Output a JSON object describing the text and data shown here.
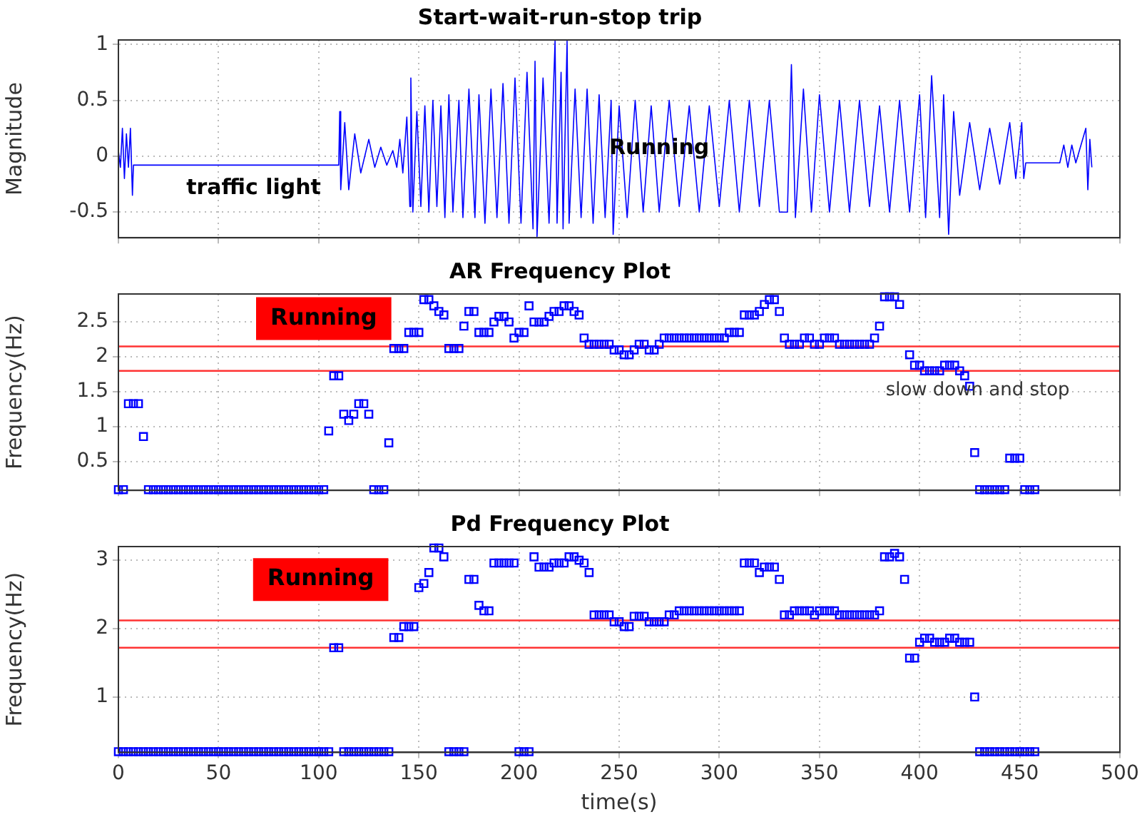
{
  "chart_data": [
    {
      "type": "line",
      "title": "Start-wait-run-stop trip",
      "ylabel": "Magnitude",
      "color": "#0000ff",
      "marker": "none",
      "line_style": "solid",
      "grid": true,
      "tick_labels": "y",
      "xlim": [
        0,
        500
      ],
      "xticks": [
        0,
        50,
        100,
        150,
        200,
        250,
        300,
        350,
        400,
        450,
        500
      ],
      "ylim": [
        -0.73,
        1.04
      ],
      "yticks": [
        -0.5,
        0,
        0.5,
        1
      ],
      "annotations": [
        "traffic light",
        "Running"
      ],
      "x": [
        0,
        1,
        2,
        3,
        4,
        5,
        6,
        7,
        7.5,
        110,
        110.5,
        111,
        113,
        115,
        118,
        121,
        125,
        128,
        131,
        134,
        137,
        139,
        140.5,
        142,
        144,
        145.5,
        146,
        147,
        149,
        151,
        153,
        155,
        157,
        159,
        161,
        163,
        165,
        167,
        170,
        172,
        175,
        178,
        180,
        183,
        186,
        189,
        192,
        195,
        198,
        201,
        204,
        207,
        208,
        209,
        212,
        215,
        218,
        219,
        221,
        222,
        224,
        225,
        228,
        231,
        234,
        237,
        240,
        243,
        246,
        247,
        250,
        254,
        258,
        262,
        266,
        270,
        275,
        280,
        285,
        290,
        295,
        300,
        305,
        310,
        315,
        320,
        325,
        330,
        334,
        336,
        338,
        342,
        346,
        350,
        355,
        360,
        365,
        370,
        375,
        380,
        385,
        390,
        395,
        400,
        403,
        406,
        410,
        412,
        414.5,
        417,
        420,
        425,
        430,
        435,
        440,
        445,
        448,
        451,
        452,
        453,
        470,
        472,
        474,
        476,
        478,
        483,
        484,
        485,
        486
      ],
      "values": [
        0.05,
        -0.1,
        0.25,
        -0.2,
        0.2,
        -0.1,
        0.25,
        -0.35,
        -0.08,
        -0.08,
        0.4,
        -0.3,
        0.3,
        -0.3,
        0.2,
        -0.15,
        0.15,
        -0.1,
        0.08,
        -0.08,
        0.05,
        -0.1,
        0.15,
        -0.15,
        0.35,
        -0.45,
        0.7,
        -0.5,
        0.4,
        -0.45,
        0.45,
        -0.5,
        0.5,
        -0.45,
        0.45,
        -0.55,
        0.55,
        -0.5,
        0.5,
        -0.55,
        0.6,
        -0.55,
        0.55,
        -0.6,
        0.6,
        -0.55,
        0.65,
        -0.6,
        0.7,
        -0.6,
        0.75,
        -0.65,
        0.85,
        -0.72,
        0.7,
        -0.6,
        1.03,
        -0.6,
        0.75,
        -0.65,
        1.03,
        -0.6,
        0.6,
        -0.55,
        0.6,
        -0.6,
        0.55,
        -0.55,
        0.5,
        -0.7,
        0.45,
        -0.55,
        0.5,
        -0.5,
        0.45,
        -0.5,
        0.5,
        -0.45,
        0.45,
        -0.5,
        0.45,
        -0.45,
        0.5,
        -0.5,
        0.5,
        -0.45,
        0.5,
        -0.5,
        -0.5,
        0.82,
        -0.55,
        0.6,
        -0.5,
        0.55,
        -0.5,
        0.5,
        -0.5,
        0.5,
        -0.45,
        0.45,
        -0.5,
        0.5,
        -0.5,
        0.55,
        -0.55,
        0.72,
        -0.55,
        0.55,
        -0.7,
        0.4,
        -0.35,
        0.3,
        -0.3,
        0.25,
        -0.25,
        0.3,
        -0.2,
        0.3,
        -0.2,
        -0.06,
        -0.06,
        0.1,
        -0.1,
        0.1,
        -0.06,
        0.25,
        -0.3,
        0.15,
        -0.1
      ]
    },
    {
      "type": "scatter",
      "title": "AR Frequency Plot",
      "ylabel": "Frequency(Hz)",
      "color": "#0000ff",
      "marker": "square",
      "grid": true,
      "tick_labels": "y",
      "xlim": [
        0,
        500
      ],
      "xticks": [
        0,
        50,
        100,
        150,
        200,
        250,
        300,
        350,
        400,
        450,
        500
      ],
      "ylim": [
        0.09,
        2.9
      ],
      "yticks": [
        0.5,
        1,
        1.5,
        2,
        2.5
      ],
      "ref_lines": [
        {
          "axis": "y",
          "value": 2.15,
          "color": "#ff3333"
        },
        {
          "axis": "y",
          "value": 1.8,
          "color": "#ff3333"
        }
      ],
      "annotations": [
        "Running",
        "slow down and stop"
      ],
      "x": [
        0,
        2.5,
        5,
        7.5,
        10,
        12.5,
        15,
        17.5,
        20,
        22.5,
        25,
        27.5,
        30,
        32.5,
        35,
        37.5,
        40,
        42.5,
        45,
        47.5,
        50,
        52.5,
        55,
        57.5,
        60,
        62.5,
        65,
        67.5,
        70,
        72.5,
        75,
        77.5,
        80,
        82.5,
        85,
        87.5,
        90,
        92.5,
        95,
        97.5,
        100,
        102.5,
        105,
        107.5,
        110,
        112.5,
        115,
        117.5,
        120,
        122.5,
        125,
        127.5,
        130,
        132.5,
        135,
        137.5,
        140,
        142.5,
        145,
        147.5,
        150,
        152.5,
        155,
        157.5,
        160,
        162.5,
        165,
        167.5,
        170,
        172.5,
        175,
        177.5,
        180,
        182.5,
        185,
        187.5,
        190,
        192.5,
        195,
        197.5,
        200,
        202.5,
        205,
        207.5,
        210,
        212.5,
        215,
        217.5,
        220,
        222.5,
        225,
        227.5,
        230,
        232.5,
        235,
        237.5,
        240,
        242.5,
        245,
        247.5,
        250,
        252.5,
        255,
        257.5,
        260,
        262.5,
        265,
        267.5,
        270,
        272.5,
        275,
        277.5,
        280,
        282.5,
        285,
        287.5,
        290,
        292.5,
        295,
        297.5,
        300,
        302.5,
        305,
        307.5,
        310,
        312.5,
        315,
        317.5,
        320,
        322.5,
        325,
        327.5,
        330,
        332.5,
        335,
        337.5,
        340,
        342.5,
        345,
        347.5,
        350,
        352.5,
        355,
        357.5,
        360,
        362.5,
        365,
        367.5,
        370,
        372.5,
        375,
        377.5,
        380,
        382.5,
        385,
        387.5,
        390,
        395,
        397.5,
        400,
        402.5,
        405,
        407.5,
        410,
        412.5,
        415,
        417.5,
        420,
        422.5,
        425,
        427.5,
        430,
        432.5,
        435,
        437.5,
        440,
        442.5,
        445,
        447.5,
        450,
        452.5,
        455,
        457.5
      ],
      "values": [
        0.1,
        0.1,
        1.33,
        1.33,
        1.33,
        0.86,
        0.1,
        0.1,
        0.1,
        0.1,
        0.1,
        0.1,
        0.1,
        0.1,
        0.1,
        0.1,
        0.1,
        0.1,
        0.1,
        0.1,
        0.1,
        0.1,
        0.1,
        0.1,
        0.1,
        0.1,
        0.1,
        0.1,
        0.1,
        0.1,
        0.1,
        0.1,
        0.1,
        0.1,
        0.1,
        0.1,
        0.1,
        0.1,
        0.1,
        0.1,
        0.1,
        0.1,
        0.94,
        1.73,
        1.73,
        1.18,
        1.09,
        1.18,
        1.33,
        1.33,
        1.18,
        0.1,
        0.1,
        0.1,
        0.77,
        2.12,
        2.12,
        2.12,
        2.35,
        2.35,
        2.35,
        2.82,
        2.82,
        2.73,
        2.65,
        2.6,
        2.12,
        2.12,
        2.12,
        2.44,
        2.65,
        2.65,
        2.35,
        2.35,
        2.35,
        2.5,
        2.58,
        2.58,
        2.5,
        2.27,
        2.35,
        2.35,
        2.73,
        2.5,
        2.5,
        2.5,
        2.58,
        2.65,
        2.65,
        2.73,
        2.73,
        2.65,
        2.6,
        2.27,
        2.18,
        2.18,
        2.18,
        2.18,
        2.18,
        2.1,
        2.1,
        2.03,
        2.03,
        2.1,
        2.18,
        2.18,
        2.1,
        2.1,
        2.18,
        2.27,
        2.27,
        2.27,
        2.27,
        2.27,
        2.27,
        2.27,
        2.27,
        2.27,
        2.27,
        2.27,
        2.27,
        2.27,
        2.35,
        2.35,
        2.35,
        2.6,
        2.6,
        2.6,
        2.65,
        2.75,
        2.82,
        2.82,
        2.65,
        2.27,
        2.18,
        2.18,
        2.18,
        2.27,
        2.27,
        2.18,
        2.18,
        2.27,
        2.27,
        2.27,
        2.18,
        2.18,
        2.18,
        2.18,
        2.18,
        2.18,
        2.18,
        2.27,
        2.44,
        2.86,
        2.86,
        2.86,
        2.75,
        2.03,
        1.88,
        1.88,
        1.8,
        1.8,
        1.8,
        1.8,
        1.88,
        1.88,
        1.88,
        1.8,
        1.73,
        1.58,
        0.63,
        0.1,
        0.1,
        0.1,
        0.1,
        0.1,
        0.1,
        0.55,
        0.55,
        0.55,
        0.1,
        0.1,
        0.1
      ]
    },
    {
      "type": "scatter",
      "title": "Pd Frequency Plot",
      "xlabel": "time(s)",
      "ylabel": "Frequency(Hz)",
      "color": "#0000ff",
      "marker": "square",
      "grid": true,
      "xlim": [
        0,
        500
      ],
      "xticks": [
        0,
        50,
        100,
        150,
        200,
        250,
        300,
        350,
        400,
        450,
        500
      ],
      "ylim": [
        0.19,
        3.2
      ],
      "yticks": [
        1,
        2,
        3
      ],
      "ref_lines": [
        {
          "axis": "y",
          "value": 2.12,
          "color": "#ff3333"
        },
        {
          "axis": "y",
          "value": 1.72,
          "color": "#ff3333"
        }
      ],
      "annotations": [
        "Running"
      ],
      "x": [
        0,
        2.5,
        5,
        7.5,
        10,
        12.5,
        15,
        17.5,
        20,
        22.5,
        25,
        27.5,
        30,
        32.5,
        35,
        37.5,
        40,
        42.5,
        45,
        47.5,
        50,
        52.5,
        55,
        57.5,
        60,
        62.5,
        65,
        67.5,
        70,
        72.5,
        75,
        77.5,
        80,
        82.5,
        85,
        87.5,
        90,
        92.5,
        95,
        97.5,
        100,
        102.5,
        105,
        107.5,
        110,
        112.5,
        115,
        117.5,
        120,
        122.5,
        125,
        127.5,
        130,
        132.5,
        135,
        137.5,
        140,
        142.5,
        145,
        147.5,
        150,
        152.5,
        155,
        157.5,
        160,
        162.5,
        165,
        167.5,
        170,
        172.5,
        175,
        177.5,
        180,
        182.5,
        185,
        187.5,
        190,
        192.5,
        195,
        197.5,
        200,
        202.5,
        205,
        207.5,
        210,
        212.5,
        215,
        217.5,
        220,
        222.5,
        225,
        227.5,
        230,
        232.5,
        235,
        237.5,
        240,
        242.5,
        245,
        247.5,
        250,
        252.5,
        255,
        257.5,
        260,
        262.5,
        265,
        267.5,
        270,
        272.5,
        275,
        277.5,
        280,
        282.5,
        285,
        287.5,
        290,
        292.5,
        295,
        297.5,
        300,
        302.5,
        305,
        307.5,
        310,
        312.5,
        315,
        317.5,
        320,
        322.5,
        325,
        327.5,
        330,
        332.5,
        335,
        337.5,
        340,
        342.5,
        345,
        347.5,
        350,
        352.5,
        355,
        357.5,
        360,
        362.5,
        365,
        367.5,
        370,
        372.5,
        375,
        377.5,
        380,
        382.5,
        385,
        387.5,
        390,
        392.5,
        395,
        397.5,
        400,
        402.5,
        405,
        407.5,
        410,
        412.5,
        415,
        417.5,
        420,
        422.5,
        425,
        427.5,
        430,
        432.5,
        435,
        437.5,
        440,
        442.5,
        445,
        447.5,
        450,
        452.5,
        455,
        457.5
      ],
      "values": [
        0.2,
        0.2,
        0.2,
        0.2,
        0.2,
        0.2,
        0.2,
        0.2,
        0.2,
        0.2,
        0.2,
        0.2,
        0.2,
        0.2,
        0.2,
        0.2,
        0.2,
        0.2,
        0.2,
        0.2,
        0.2,
        0.2,
        0.2,
        0.2,
        0.2,
        0.2,
        0.2,
        0.2,
        0.2,
        0.2,
        0.2,
        0.2,
        0.2,
        0.2,
        0.2,
        0.2,
        0.2,
        0.2,
        0.2,
        0.2,
        0.2,
        0.2,
        0.2,
        1.72,
        1.72,
        0.2,
        0.2,
        0.2,
        0.2,
        0.2,
        0.2,
        0.2,
        0.2,
        0.2,
        0.2,
        1.87,
        1.87,
        2.03,
        2.03,
        2.03,
        2.6,
        2.66,
        2.82,
        3.18,
        3.18,
        3.05,
        0.2,
        0.2,
        0.2,
        0.2,
        2.72,
        2.72,
        2.34,
        2.26,
        2.26,
        2.96,
        2.96,
        2.96,
        2.96,
        2.96,
        0.2,
        0.2,
        0.2,
        3.05,
        2.9,
        2.9,
        2.9,
        2.96,
        2.96,
        2.96,
        3.05,
        3.05,
        3.0,
        2.96,
        2.82,
        2.2,
        2.2,
        2.2,
        2.2,
        2.1,
        2.1,
        2.03,
        2.03,
        2.18,
        2.18,
        2.18,
        2.1,
        2.1,
        2.1,
        2.1,
        2.2,
        2.2,
        2.26,
        2.26,
        2.26,
        2.26,
        2.26,
        2.26,
        2.26,
        2.26,
        2.26,
        2.26,
        2.26,
        2.26,
        2.26,
        2.96,
        2.96,
        2.96,
        2.82,
        2.9,
        2.9,
        2.9,
        2.72,
        2.2,
        2.2,
        2.26,
        2.26,
        2.26,
        2.26,
        2.2,
        2.26,
        2.26,
        2.26,
        2.26,
        2.2,
        2.2,
        2.2,
        2.2,
        2.2,
        2.2,
        2.2,
        2.2,
        2.26,
        3.05,
        3.05,
        3.1,
        3.05,
        2.72,
        1.57,
        1.57,
        1.8,
        1.86,
        1.86,
        1.8,
        1.8,
        1.8,
        1.86,
        1.86,
        1.8,
        1.8,
        1.8,
        1.0,
        0.2,
        0.2,
        0.2,
        0.2,
        0.2,
        0.2,
        0.2,
        0.2,
        0.2,
        0.2,
        0.2,
        0.2
      ]
    }
  ]
}
